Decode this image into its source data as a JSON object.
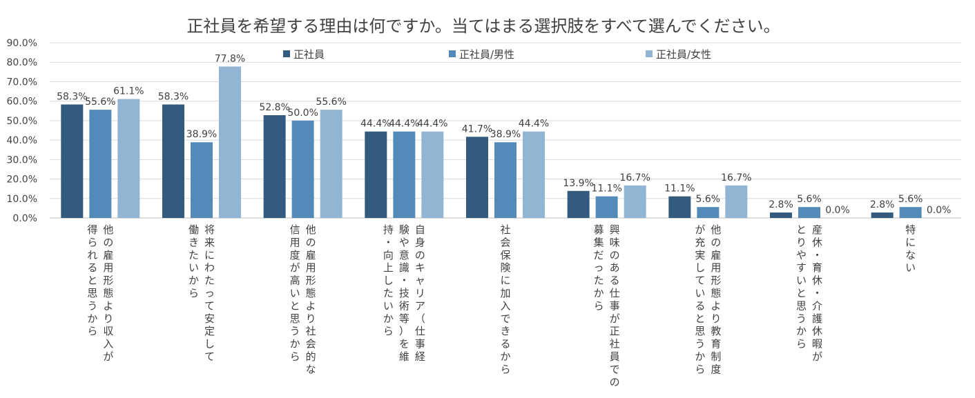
{
  "chart_data": {
    "type": "bar",
    "title": "正社員を希望する理由は何ですか。当てはまる選択肢をすべて選んでください。",
    "xlabel": "",
    "ylabel": "",
    "ylim": [
      0,
      90
    ],
    "y_ticks": [
      "0.0%",
      "10.0%",
      "20.0%",
      "30.0%",
      "40.0%",
      "50.0%",
      "60.0%",
      "70.0%",
      "80.0%",
      "90.0%"
    ],
    "grid": true,
    "legend_position": "top",
    "categories": [
      [
        "他の雇用形態より収入が",
        "得られると思うから"
      ],
      [
        "将来にわたって安定して",
        "働きたいから"
      ],
      [
        "他の雇用形態より社会的な",
        "信用度が高いと思うから"
      ],
      [
        "自身のキャリア（仕事経",
        "験や意識・技術等）を維",
        "持・向上したいから"
      ],
      [
        "社会保険に加入できるから"
      ],
      [
        "興味のある仕事が正社員での",
        "募集だったから"
      ],
      [
        "他の雇用形態より教育制度",
        "が充実していると思うから"
      ],
      [
        "産休・育休・介護休暇が",
        "とりやすいと思うから"
      ],
      [
        "特にない"
      ]
    ],
    "series": [
      {
        "name": "正社員",
        "color": "#335b7e",
        "values": [
          58.3,
          58.3,
          52.8,
          44.4,
          41.7,
          13.9,
          11.1,
          2.8,
          2.8
        ],
        "labels": [
          "58.3%",
          "58.3%",
          "52.8%",
          "44.4%",
          "41.7%",
          "13.9%",
          "11.1%",
          "2.8%",
          "2.8%"
        ]
      },
      {
        "name": "正社員/男性",
        "color": "#548ab9",
        "values": [
          55.6,
          38.9,
          50.0,
          44.4,
          38.9,
          11.1,
          5.6,
          5.6,
          5.6
        ],
        "labels": [
          "55.6%",
          "38.9%",
          "50.0%",
          "44.4%",
          "38.9%",
          "11.1%",
          "5.6%",
          "5.6%",
          "5.6%"
        ]
      },
      {
        "name": "正社員/女性",
        "color": "#93b5d4",
        "values": [
          61.1,
          77.8,
          55.6,
          44.4,
          44.4,
          16.7,
          16.7,
          0.0,
          0.0
        ],
        "labels": [
          "61.1%",
          "77.8%",
          "55.6%",
          "44.4%",
          "44.4%",
          "16.7%",
          "16.7%",
          "0.0%",
          "0.0%"
        ]
      }
    ]
  }
}
